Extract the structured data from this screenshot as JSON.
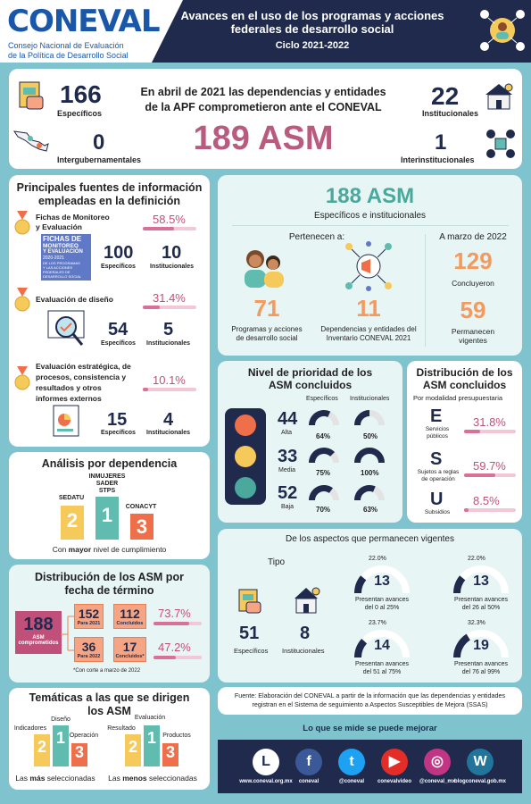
{
  "header": {
    "logo": "CONEVAL",
    "org_line1": "Consejo Nacional de Evaluación",
    "org_line2": "de la Política de Desarrollo Social",
    "title_line1": "Avances en el uso de los programas y acciones",
    "title_line2": "federales de desarrollo social",
    "cycle": "Ciclo 2021-2022"
  },
  "summary": {
    "especificos_num": "166",
    "especificos_label": "Específicos",
    "intergub_num": "0",
    "intergub_label": "Intergubernamentales",
    "institucionales_num": "22",
    "institucionales_label": "Institucionales",
    "interinst_num": "1",
    "interinst_label": "Interinstitucionales",
    "text_line1": "En abril de 2021 las dependencias y entidades",
    "text_line2": "de la APF comprometieron ante el CONEVAL",
    "total": "189 ASM"
  },
  "sources": {
    "title_line1": "Principales fuentes de información",
    "title_line2": "empleadas en la definición",
    "items": [
      {
        "label_line1": "Fichas de Monitoreo",
        "label_line2": "y Evaluación",
        "pct": "58.5%",
        "pct_value": 58.5,
        "esp": "100",
        "inst": "10",
        "esp_label": "Específicos",
        "inst_label": "Institucionales"
      },
      {
        "label_line1": "Evaluación de diseño",
        "pct": "31.4%",
        "pct_value": 31.4,
        "esp": "54",
        "inst": "5",
        "esp_label": "Específicos",
        "inst_label": "Institucionales"
      },
      {
        "label_line1": "Evaluación estratégica, de",
        "label_line2": "procesos, consistencia y",
        "label_line3": "resultados y otros",
        "label_line4": "informes externos",
        "pct": "10.1%",
        "pct_value": 10.1,
        "esp": "15",
        "inst": "4",
        "esp_label": "Específicos",
        "inst_label": "Institucionales"
      }
    ],
    "ficha_line1": "FICHAS DE",
    "ficha_line2": "MONITOREO",
    "ficha_line3": "Y EVALUACIÓN",
    "ficha_line4": "2020-2021",
    "ficha_line5": "DE LOS PROGRAMAS",
    "ficha_line6": "Y LAS ACCIONES",
    "ficha_line7": "FEDERALES DE",
    "ficha_line8": "DESARROLLO SOCIAL"
  },
  "asm188": {
    "title": "188 ASM",
    "subtitle": "Específicos e institucionales",
    "pertenecen": "Pertenecen a:",
    "prog_num": "71",
    "prog_line1": "Programas y acciones",
    "prog_line2": "de desarrollo social",
    "dep_num": "11",
    "dep_line1": "Dependencias y entidades del",
    "dep_line2": "Inventario CONEVAL 2021",
    "marzo": "A marzo de 2022",
    "concl_num": "129",
    "concl_label": "Concluyeron",
    "perm_num": "59",
    "perm_line1": "Permanecen",
    "perm_line2": "vigentes"
  },
  "priority": {
    "title_line1": "Nivel de prioridad de los",
    "title_line2": "ASM concluidos",
    "col1": "Específicos",
    "col2": "Institucionales",
    "rows": [
      {
        "num": "44",
        "label": "Alta",
        "esp": "64%",
        "esp_value": 64,
        "inst": "50%",
        "inst_value": 50
      },
      {
        "num": "33",
        "label": "Media",
        "esp": "75%",
        "esp_value": 75,
        "inst": "100%",
        "inst_value": 100
      },
      {
        "num": "52",
        "label": "Baja",
        "esp": "70%",
        "esp_value": 70,
        "inst": "63%",
        "inst_value": 63
      }
    ]
  },
  "distribution": {
    "title_line1": "Distribución de los",
    "title_line2": "ASM concluidos",
    "subtitle": "Por modalidad presupuestaria",
    "rows": [
      {
        "letter": "E",
        "label_line1": "Servicios",
        "label_line2": "públicos",
        "pct": "31.8%",
        "pct_value": 31.8
      },
      {
        "letter": "S",
        "label_line1": "Sujetos a reglas",
        "label_line2": "de operación",
        "pct": "59.7%",
        "pct_value": 59.7
      },
      {
        "letter": "U",
        "label_line1": "Subsidios",
        "label_line2": "",
        "pct": "8.5%",
        "pct_value": 8.5
      }
    ]
  },
  "dependencia": {
    "title": "Análisis por dependencia",
    "first_line1": "INMUJERES",
    "first_line2": "SADER",
    "first_line3": "STPS",
    "second": "SEDATU",
    "third": "CONACYT",
    "n1": "1",
    "n2": "2",
    "n3": "3",
    "caption_pre": "Con ",
    "caption_bold": "mayor",
    "caption_post": " nivel de cumplimiento"
  },
  "vigentes": {
    "title": "De los aspectos que permanecen vigentes",
    "tipo": "Tipo",
    "esp_num": "51",
    "esp_label": "Específicos",
    "inst_num": "8",
    "inst_label": "Institucionales",
    "gauges": [
      {
        "pct": "22.0%",
        "pct_value": 22.0,
        "num": "13",
        "label_line1": "Presentan avances",
        "label_line2": "del 0 al 25%"
      },
      {
        "pct": "22.0%",
        "pct_value": 22.0,
        "num": "13",
        "label_line1": "Presentan avances",
        "label_line2": "del 26 al 50%"
      },
      {
        "pct": "23.7%",
        "pct_value": 23.7,
        "num": "14",
        "label_line1": "Presentan avances",
        "label_line2": "del 51 al 75%"
      },
      {
        "pct": "32.3%",
        "pct_value": 32.3,
        "num": "19",
        "label_line1": "Presentan avances",
        "label_line2": "del 76 al 99%"
      }
    ]
  },
  "fecha": {
    "title_line1": "Distribución de los ASM por",
    "title_line2": "fecha de término",
    "total": "188",
    "total_label1": "ASM",
    "total_label2": "comprometidos",
    "r1_num": "152",
    "r1_label": "Para 2021",
    "r1_concl": "112",
    "r1_concl_label": "Concluidos",
    "r1_pct": "73.7%",
    "r1_pct_value": 73.7,
    "r2_num": "36",
    "r2_label": "Para 2022",
    "r2_concl": "17",
    "r2_concl_label": "Concluidos*",
    "r2_pct": "47.2%",
    "r2_pct_value": 47.2,
    "note": "*Con corte a marzo de 2022"
  },
  "fuente": {
    "line1": "Fuente: Elaboración del CONEVAL a partir de la información que las dependencias y entidades",
    "line2": "registran en el Sistema de seguimiento a Aspectos Susceptibles de Mejora (SSAS)"
  },
  "tematicas": {
    "title_line1": "Temáticas a las que se dirigen",
    "title_line2": "los ASM",
    "left_1": "Diseño",
    "left_2": "Indicadores",
    "left_3": "Operación",
    "right_1": "Evaluación",
    "right_2": "Resultado",
    "right_3": "Productos",
    "caption_left_pre": "Las ",
    "caption_left_bold": "más",
    "caption_left_post": " seleccionadas",
    "caption_right_pre": "Las ",
    "caption_right_bold": "menos",
    "caption_right_post": " seleccionadas",
    "n1": "1",
    "n2": "2",
    "n3": "3"
  },
  "footer": {
    "motto": "Lo que se mide se puede mejorar",
    "links": [
      {
        "label": "www.coneval.org.mx",
        "icon": "coneval-icon",
        "color": "#ffffff"
      },
      {
        "label": "coneval",
        "icon": "facebook-icon",
        "color": "#3b5998"
      },
      {
        "label": "@coneval",
        "icon": "twitter-icon",
        "color": "#1da1f2"
      },
      {
        "label": "conevalvideo",
        "icon": "youtube-icon",
        "color": "#e52d27"
      },
      {
        "label": "@coneval_mx",
        "icon": "instagram-icon",
        "color": "#c13584"
      },
      {
        "label": "blogconeval.gob.mx",
        "icon": "wordpress-icon",
        "color": "#21759b"
      }
    ]
  }
}
